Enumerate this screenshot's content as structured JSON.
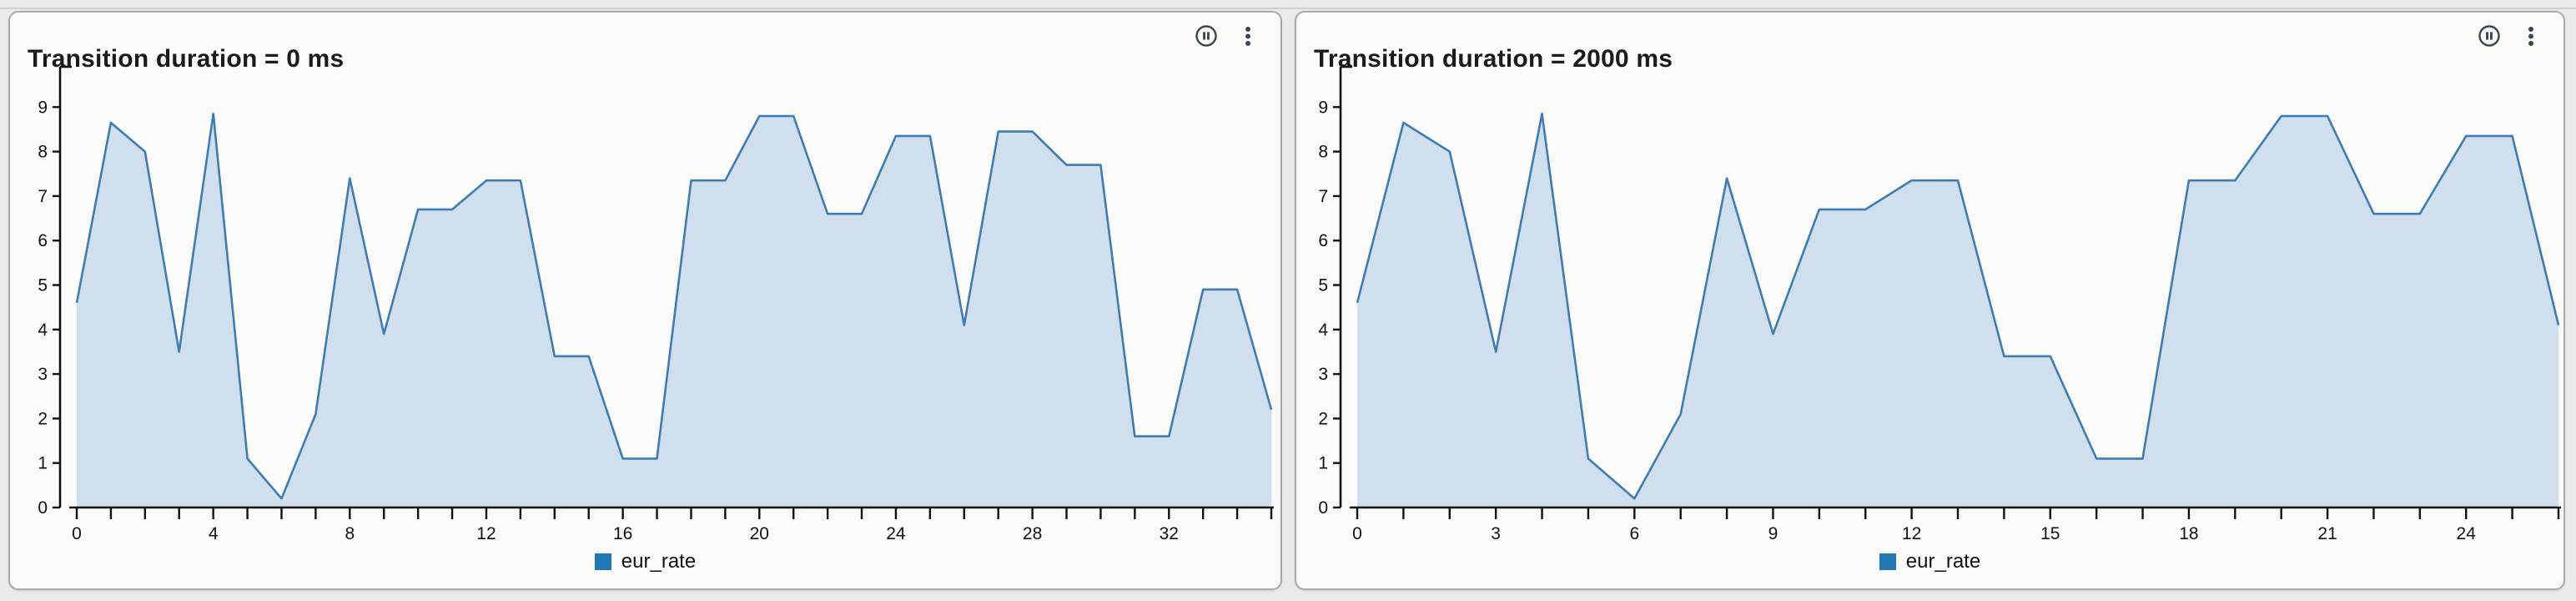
{
  "app": {
    "background": "#e9eaea",
    "panel_background": "#fbfbf9",
    "panel_border": "#a6abb0"
  },
  "panels": [
    {
      "title": "Transition duration = 0 ms",
      "toolbar": {
        "pause_icon": "pause-circle",
        "menu_icon": "vertical-ellipsis"
      },
      "legend": {
        "label": "eur_rate",
        "swatch_color": "#1f77b4"
      }
    },
    {
      "title": "Transition duration = 2000 ms",
      "toolbar": {
        "pause_icon": "pause-circle",
        "menu_icon": "vertical-ellipsis"
      },
      "legend": {
        "label": "eur_rate",
        "swatch_color": "#1f77b4"
      }
    }
  ],
  "chart_data": [
    {
      "type": "area",
      "title": "Transition duration = 0 ms",
      "x_is_index": true,
      "series": [
        {
          "name": "eur_rate",
          "values": [
            4.6,
            8.65,
            8.0,
            3.5,
            8.85,
            1.1,
            0.2,
            2.1,
            7.4,
            3.9,
            6.7,
            6.7,
            7.35,
            7.35,
            3.4,
            3.4,
            1.1,
            1.1,
            7.35,
            7.35,
            8.8,
            8.8,
            6.6,
            6.6,
            8.35,
            8.35,
            4.1,
            8.45,
            8.45,
            7.7,
            7.7,
            1.6,
            1.6,
            4.9,
            4.9,
            2.2
          ]
        }
      ],
      "xlim": [
        0,
        35
      ],
      "ylim": [
        0,
        9
      ],
      "x_tick_step": 1,
      "x_label_step": 4,
      "y_tick_step": 1,
      "y_label_step": 1,
      "grid": false,
      "legend_position": "bottom-center",
      "colors": {
        "line": "#3e7cb1",
        "fill": "#cfdfee",
        "axis": "#111111",
        "text": "#111111"
      }
    },
    {
      "type": "area",
      "title": "Transition duration = 2000 ms",
      "x_is_index": true,
      "series": [
        {
          "name": "eur_rate",
          "values": [
            4.6,
            8.65,
            8.0,
            3.5,
            8.85,
            1.1,
            0.2,
            2.1,
            7.4,
            3.9,
            6.7,
            6.7,
            7.35,
            7.35,
            3.4,
            3.4,
            1.1,
            1.1,
            7.35,
            7.35,
            8.8,
            8.8,
            6.6,
            6.6,
            8.35,
            8.35,
            4.1
          ]
        }
      ],
      "xlim": [
        0,
        26
      ],
      "ylim": [
        0,
        9
      ],
      "x_tick_step": 1,
      "x_label_step": 3,
      "y_tick_step": 1,
      "y_label_step": 1,
      "grid": false,
      "legend_position": "bottom-center",
      "colors": {
        "line": "#3e7cb1",
        "fill": "#cfdfee",
        "axis": "#111111",
        "text": "#111111"
      }
    }
  ]
}
